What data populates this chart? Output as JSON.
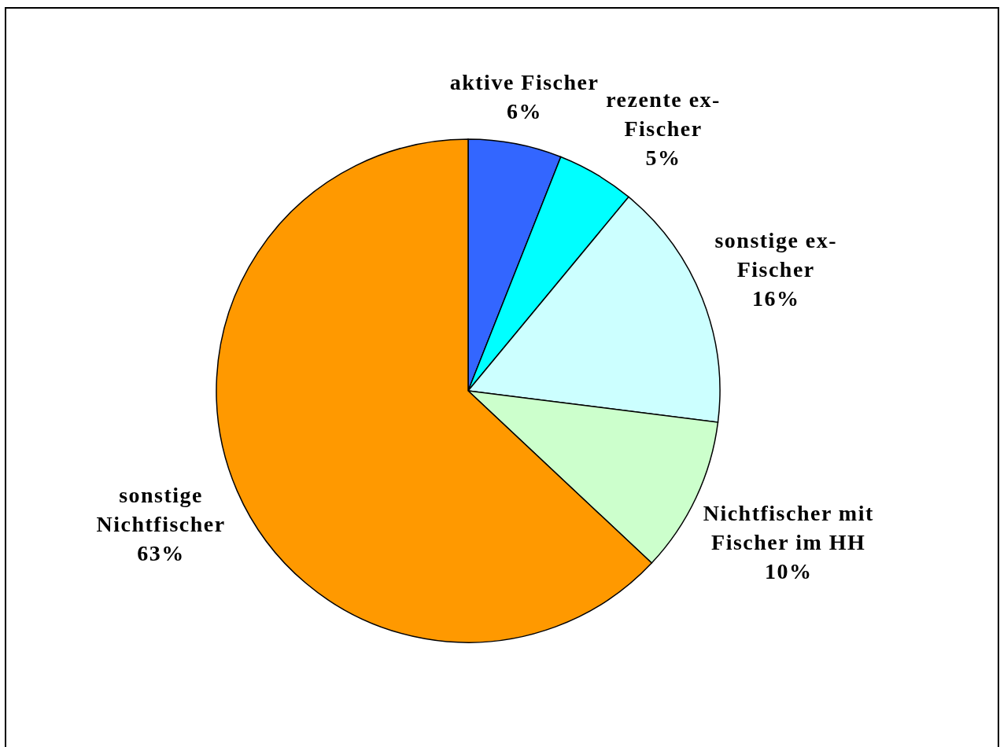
{
  "chart_data": {
    "type": "pie",
    "categories": [
      "aktive Fischer",
      "rezente ex-Fischer",
      "sonstige ex-Fischer",
      "Nichtfischer mit Fischer im HH",
      "sonstige Nichtfischer"
    ],
    "values": [
      6,
      5,
      16,
      10,
      63
    ],
    "value_labels": [
      "6%",
      "5%",
      "16%",
      "10%",
      "63%"
    ],
    "colors": [
      "#3366ff",
      "#00ffff",
      "#ccffff",
      "#ccffcc",
      "#ff9900"
    ]
  }
}
